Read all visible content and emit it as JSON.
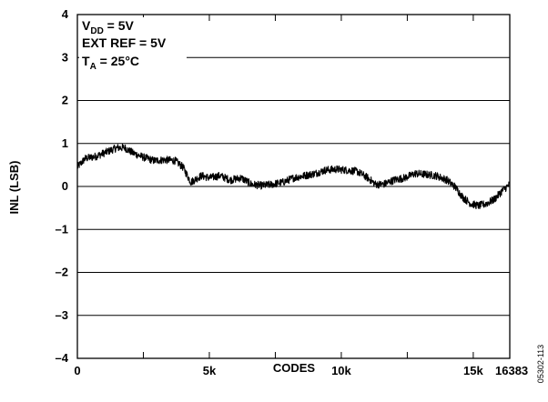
{
  "chart_data": {
    "type": "line",
    "xlabel": "CODES",
    "ylabel": "INL (LSB)",
    "xlim": [
      0,
      16383
    ],
    "ylim": [
      -4,
      4
    ],
    "x_ticks": [
      {
        "value": 0,
        "label": "0"
      },
      {
        "value": 5000,
        "label": "5k"
      },
      {
        "value": 10000,
        "label": "10k"
      },
      {
        "value": 15000,
        "label": "15k"
      },
      {
        "value": 16383,
        "label": "16383"
      }
    ],
    "x_minor_ticks": [
      2500,
      7500,
      12500
    ],
    "y_ticks": [
      {
        "value": 4,
        "label": "4"
      },
      {
        "value": 3,
        "label": "3"
      },
      {
        "value": 2,
        "label": "2"
      },
      {
        "value": 1,
        "label": "1"
      },
      {
        "value": 0,
        "label": "0"
      },
      {
        "value": -1,
        "label": "–1"
      },
      {
        "value": -2,
        "label": "–2"
      },
      {
        "value": -3,
        "label": "–3"
      },
      {
        "value": -4,
        "label": "–4"
      }
    ],
    "grid": "horizontal",
    "annotations": [
      {
        "main": "V",
        "sub": "DD",
        "rest": " = 5V"
      },
      {
        "main": "EXT REF = 5V",
        "sub": "",
        "rest": ""
      },
      {
        "main": "T",
        "sub": "A",
        "rest": " = 25°C"
      }
    ],
    "figure_id": "05302-113",
    "series": [
      {
        "color": "#000000",
        "x": [
          0,
          300,
          700,
          1100,
          1500,
          1800,
          2100,
          2500,
          2900,
          3300,
          3700,
          4000,
          4300,
          4700,
          5000,
          5400,
          5800,
          6200,
          6600,
          7000,
          7400,
          7800,
          8200,
          8600,
          9000,
          9400,
          9800,
          10200,
          10600,
          11000,
          11300,
          11600,
          12000,
          12400,
          12800,
          13200,
          13600,
          14000,
          14300,
          14600,
          14900,
          15200,
          15500,
          15800,
          16100,
          16383
        ],
        "y": [
          0.45,
          0.65,
          0.7,
          0.8,
          0.9,
          0.9,
          0.78,
          0.68,
          0.6,
          0.62,
          0.6,
          0.45,
          0.1,
          0.25,
          0.2,
          0.25,
          0.15,
          0.2,
          0.05,
          0.02,
          0.05,
          0.1,
          0.2,
          0.25,
          0.3,
          0.38,
          0.4,
          0.38,
          0.35,
          0.2,
          0.05,
          0.05,
          0.15,
          0.2,
          0.3,
          0.28,
          0.25,
          0.15,
          0.0,
          -0.25,
          -0.4,
          -0.45,
          -0.4,
          -0.3,
          -0.1,
          0.05
        ]
      }
    ]
  }
}
